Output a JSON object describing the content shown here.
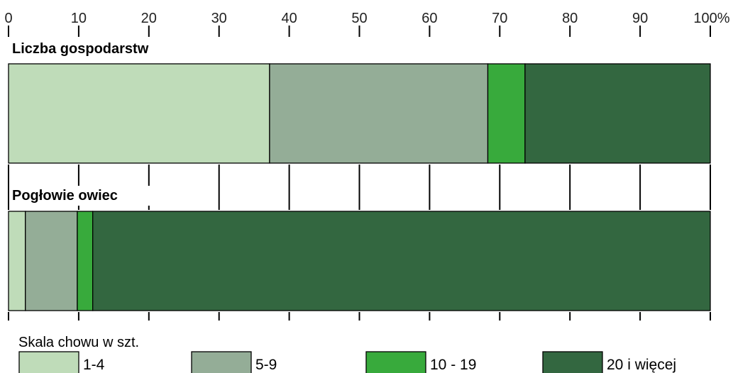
{
  "chart_data": {
    "type": "bar",
    "orientation": "horizontal",
    "stacked": true,
    "unit": "%",
    "xlim": [
      0,
      100
    ],
    "xticks": [
      0,
      10,
      20,
      30,
      40,
      50,
      60,
      70,
      80,
      90,
      100
    ],
    "xtick_labels": [
      "0",
      "10",
      "20",
      "30",
      "40",
      "50",
      "60",
      "70",
      "80",
      "90",
      "100%"
    ],
    "categories": [
      "Liczba gospodarstw",
      "Pogłowie owiec"
    ],
    "series": [
      {
        "name": "1-4",
        "color": "#bfdcb9",
        "values": [
          37.2,
          2.4
        ]
      },
      {
        "name": "5-9",
        "color": "#94ad97",
        "values": [
          31.1,
          7.4
        ]
      },
      {
        "name": "10 - 19",
        "color": "#38aa3c",
        "values": [
          5.3,
          2.2
        ]
      },
      {
        "name": "20 i więcej",
        "color": "#336740",
        "values": [
          26.4,
          88.0
        ]
      }
    ],
    "legend": {
      "title": "Skala chowu w szt.",
      "position": "bottom"
    },
    "grid": true
  }
}
